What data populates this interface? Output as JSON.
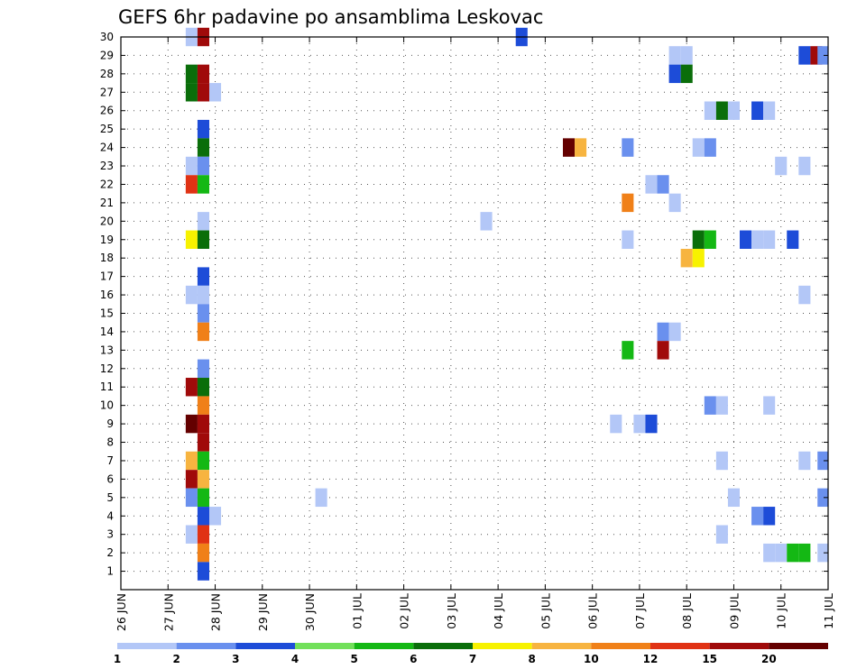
{
  "chart_data": {
    "type": "heatmap",
    "title": "GEFS 6hr padavine po ansamblima Leskovac",
    "xlabel": "",
    "ylabel": "",
    "x_tick_labels": [
      "26 JUN",
      "27 JUN",
      "28 JUN",
      "29 JUN",
      "30 JUN",
      "01 JUL",
      "02 JUL",
      "03 JUL",
      "04 JUL",
      "05 JUL",
      "06 JUL",
      "07 JUL",
      "08 JUL",
      "09 JUL",
      "10 JUL",
      "11 JUL"
    ],
    "x_range_days": [
      0,
      15
    ],
    "x_step_days": 0.25,
    "y_range_members": [
      0,
      30
    ],
    "y_tick_labels": [
      "1",
      "2",
      "3",
      "4",
      "5",
      "6",
      "7",
      "8",
      "9",
      "10",
      "11",
      "12",
      "13",
      "14",
      "15",
      "16",
      "17",
      "18",
      "19",
      "20",
      "21",
      "22",
      "23",
      "24",
      "25",
      "26",
      "27",
      "28",
      "29",
      "30"
    ],
    "grid": "dotted",
    "colorbar": {
      "placement": "bottom",
      "labels": [
        "1",
        "2",
        "3",
        "4",
        "5",
        "6",
        "7",
        "8",
        "10",
        "12",
        "15",
        "20"
      ],
      "colors": [
        "#b3c7f7",
        "#6a90ee",
        "#1d4cd8",
        "#72e05a",
        "#14b814",
        "#0a6e0a",
        "#f7f200",
        "#f7b440",
        "#f08018",
        "#e03214",
        "#a00a0a",
        "#640000"
      ]
    },
    "cells": [
      {
        "member": 30,
        "day": 1.5,
        "value": 1.5
      },
      {
        "member": 30,
        "day": 1.75,
        "value": 15
      },
      {
        "member": 30,
        "day": 8.5,
        "value": 3
      },
      {
        "member": 29,
        "day": 11.75,
        "value": 1.5
      },
      {
        "member": 29,
        "day": 12,
        "value": 1.5
      },
      {
        "member": 29,
        "day": 14.5,
        "value": 3
      },
      {
        "member": 29,
        "day": 14.75,
        "value": 15
      },
      {
        "member": 29,
        "day": 14.9,
        "value": 2.5
      },
      {
        "member": 28,
        "day": 1.5,
        "value": 6
      },
      {
        "member": 28,
        "day": 1.75,
        "value": 15
      },
      {
        "member": 28,
        "day": 11.75,
        "value": 3
      },
      {
        "member": 28,
        "day": 12,
        "value": 6
      },
      {
        "member": 27,
        "day": 1.5,
        "value": 6
      },
      {
        "member": 27,
        "day": 1.75,
        "value": 15
      },
      {
        "member": 27,
        "day": 2,
        "value": 1.5
      },
      {
        "member": 26,
        "day": 12.5,
        "value": 1.5
      },
      {
        "member": 26,
        "day": 12.75,
        "value": 6
      },
      {
        "member": 26,
        "day": 13,
        "value": 1.5
      },
      {
        "member": 26,
        "day": 13.5,
        "value": 3
      },
      {
        "member": 26,
        "day": 13.75,
        "value": 1.5
      },
      {
        "member": 25,
        "day": 1.75,
        "value": 3
      },
      {
        "member": 24,
        "day": 1.75,
        "value": 6
      },
      {
        "member": 24,
        "day": 9.5,
        "value": 20
      },
      {
        "member": 24,
        "day": 9.75,
        "value": 8
      },
      {
        "member": 24,
        "day": 10.75,
        "value": 2.5
      },
      {
        "member": 24,
        "day": 12.25,
        "value": 1.5
      },
      {
        "member": 24,
        "day": 12.5,
        "value": 2.5
      },
      {
        "member": 23,
        "day": 1.5,
        "value": 1.5
      },
      {
        "member": 23,
        "day": 1.75,
        "value": 2.5
      },
      {
        "member": 23,
        "day": 14,
        "value": 1.5
      },
      {
        "member": 23,
        "day": 14.5,
        "value": 1.5
      },
      {
        "member": 22,
        "day": 1.5,
        "value": 12
      },
      {
        "member": 22,
        "day": 1.75,
        "value": 5
      },
      {
        "member": 22,
        "day": 11.25,
        "value": 1.5
      },
      {
        "member": 22,
        "day": 11.5,
        "value": 2.5
      },
      {
        "member": 21,
        "day": 10.75,
        "value": 10
      },
      {
        "member": 21,
        "day": 11.75,
        "value": 1.5
      },
      {
        "member": 20,
        "day": 1.75,
        "value": 1.5
      },
      {
        "member": 20,
        "day": 7.75,
        "value": 1.5
      },
      {
        "member": 19,
        "day": 1.5,
        "value": 7
      },
      {
        "member": 19,
        "day": 1.75,
        "value": 6
      },
      {
        "member": 19,
        "day": 10.75,
        "value": 1.5
      },
      {
        "member": 19,
        "day": 12.25,
        "value": 6
      },
      {
        "member": 19,
        "day": 12.5,
        "value": 5
      },
      {
        "member": 19,
        "day": 13.25,
        "value": 3
      },
      {
        "member": 19,
        "day": 13.5,
        "value": 1.5
      },
      {
        "member": 19,
        "day": 13.75,
        "value": 1.5
      },
      {
        "member": 19,
        "day": 14.25,
        "value": 3
      },
      {
        "member": 18,
        "day": 12,
        "value": 8
      },
      {
        "member": 18,
        "day": 12.25,
        "value": 7
      },
      {
        "member": 17,
        "day": 1.75,
        "value": 3
      },
      {
        "member": 16,
        "day": 1.5,
        "value": 1.5
      },
      {
        "member": 16,
        "day": 1.75,
        "value": 1.5
      },
      {
        "member": 16,
        "day": 14.5,
        "value": 1.5
      },
      {
        "member": 15,
        "day": 1.75,
        "value": 2.5
      },
      {
        "member": 14,
        "day": 1.75,
        "value": 10
      },
      {
        "member": 14,
        "day": 11.5,
        "value": 2.5
      },
      {
        "member": 14,
        "day": 11.75,
        "value": 1.5
      },
      {
        "member": 13,
        "day": 10.75,
        "value": 5
      },
      {
        "member": 13,
        "day": 11.5,
        "value": 17
      },
      {
        "member": 12,
        "day": 1.75,
        "value": 2.5
      },
      {
        "member": 11,
        "day": 1.5,
        "value": 17
      },
      {
        "member": 11,
        "day": 1.75,
        "value": 6
      },
      {
        "member": 10,
        "day": 1.75,
        "value": 10
      },
      {
        "member": 10,
        "day": 12.5,
        "value": 2.5
      },
      {
        "member": 10,
        "day": 12.75,
        "value": 1.5
      },
      {
        "member": 10,
        "day": 13.75,
        "value": 1.5
      },
      {
        "member": 9,
        "day": 1.5,
        "value": 20
      },
      {
        "member": 9,
        "day": 1.75,
        "value": 15
      },
      {
        "member": 9,
        "day": 10.5,
        "value": 1.5
      },
      {
        "member": 9,
        "day": 11,
        "value": 1.5
      },
      {
        "member": 9,
        "day": 11.25,
        "value": 3
      },
      {
        "member": 8,
        "day": 1.75,
        "value": 15
      },
      {
        "member": 7,
        "day": 1.5,
        "value": 8
      },
      {
        "member": 7,
        "day": 1.75,
        "value": 5
      },
      {
        "member": 7,
        "day": 12.75,
        "value": 1.5
      },
      {
        "member": 7,
        "day": 14.5,
        "value": 1.5
      },
      {
        "member": 7,
        "day": 14.9,
        "value": 2.5
      },
      {
        "member": 6,
        "day": 1.5,
        "value": 15
      },
      {
        "member": 6,
        "day": 1.75,
        "value": 8
      },
      {
        "member": 5,
        "day": 1.5,
        "value": 2.5
      },
      {
        "member": 5,
        "day": 1.75,
        "value": 5
      },
      {
        "member": 5,
        "day": 4.25,
        "value": 1.5
      },
      {
        "member": 5,
        "day": 13,
        "value": 1.5
      },
      {
        "member": 5,
        "day": 14.9,
        "value": 2.5
      },
      {
        "member": 4,
        "day": 1.75,
        "value": 3
      },
      {
        "member": 4,
        "day": 2,
        "value": 1.5
      },
      {
        "member": 4,
        "day": 13.5,
        "value": 2.5
      },
      {
        "member": 4,
        "day": 13.75,
        "value": 3
      },
      {
        "member": 3,
        "day": 1.5,
        "value": 1.5
      },
      {
        "member": 3,
        "day": 1.75,
        "value": 12
      },
      {
        "member": 3,
        "day": 12.75,
        "value": 1.5
      },
      {
        "member": 2,
        "day": 1.75,
        "value": 10
      },
      {
        "member": 2,
        "day": 13.75,
        "value": 1.5
      },
      {
        "member": 2,
        "day": 14,
        "value": 1.5
      },
      {
        "member": 2,
        "day": 14.25,
        "value": 5
      },
      {
        "member": 2,
        "day": 14.5,
        "value": 5
      },
      {
        "member": 2,
        "day": 14.9,
        "value": 1.5
      },
      {
        "member": 1,
        "day": 1.75,
        "value": 3
      }
    ]
  }
}
